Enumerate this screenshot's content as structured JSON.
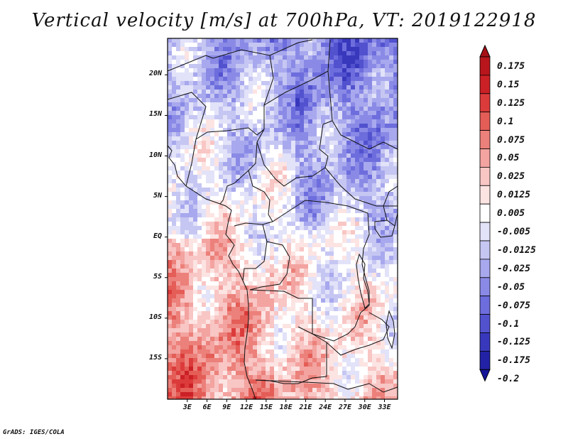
{
  "title": "Vertical velocity [m/s] at 700hPa, VT: 2019122918",
  "credit": "GrADS: IGES/COLA",
  "map": {
    "variable": "Vertical velocity",
    "units": "m/s",
    "level": "700hPa",
    "valid_time": "2019122918",
    "lat_labels": [
      "20N",
      "15N",
      "10N",
      "5N",
      "EQ",
      "5S",
      "10S",
      "15S"
    ],
    "lat_values": [
      20,
      15,
      10,
      5,
      0,
      -5,
      -10,
      -15
    ],
    "lon_labels": [
      "3E",
      "6E",
      "9E",
      "12E",
      "15E",
      "18E",
      "21E",
      "24E",
      "27E",
      "30E",
      "33E"
    ],
    "lon_values": [
      3,
      6,
      9,
      12,
      15,
      18,
      21,
      24,
      27,
      30,
      33
    ],
    "lat_range": [
      -20,
      24.5
    ],
    "lon_range": [
      0,
      35
    ]
  },
  "colorbar": {
    "labels": [
      "0.175",
      "0.15",
      "0.125",
      "0.1",
      "0.075",
      "0.05",
      "0.025",
      "0.0125",
      "0.005",
      "-0.005",
      "-0.0125",
      "-0.025",
      "-0.05",
      "-0.075",
      "-0.1",
      "-0.125",
      "-0.175",
      "-0.2"
    ],
    "colors": [
      "#a50f15",
      "#b8161c",
      "#cb2026",
      "#dc3b3b",
      "#e45d57",
      "#ec807a",
      "#f3a3a0",
      "#f8c6c4",
      "#fce4e3",
      "#ffffff",
      "#e2e2f9",
      "#c6c6f3",
      "#a8a8ee",
      "#8a8ae6",
      "#6d6ddd",
      "#5252cf",
      "#3838bd",
      "#2222a6",
      "#15159a"
    ],
    "top_arrow_color": "#a50f15",
    "bottom_arrow_color": "#15159a"
  }
}
